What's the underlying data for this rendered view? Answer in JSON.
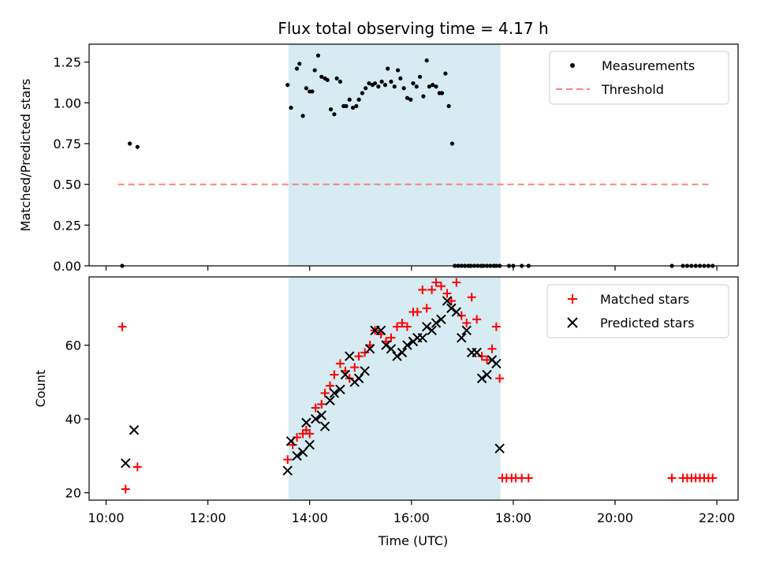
{
  "chart_data": [
    {
      "type": "scatter",
      "title": "Flux total observing time = 4.17 h",
      "ylabel": "Matched/Predicted stars",
      "xlabel": "",
      "ylim": [
        0,
        1.36
      ],
      "yticks": [
        "0.00",
        "0.25",
        "0.50",
        "0.75",
        "1.00",
        "1.25"
      ],
      "legend_position": "top-right",
      "shaded_span": {
        "start": "13:35",
        "end": "17:45",
        "color": "#add8e6"
      },
      "threshold": {
        "name": "Threshold",
        "value": 0.5,
        "start": "10:14",
        "end": "21:55",
        "color": "#ff8080"
      },
      "series": [
        {
          "name": "Measurements",
          "marker": "dot",
          "color": "#000000",
          "x": [
            "10:19",
            "10:28",
            "10:37",
            "13:34",
            "13:38",
            "13:45",
            "13:48",
            "13:52",
            "13:56",
            "14:00",
            "14:03",
            "14:06",
            "14:10",
            "14:14",
            "14:18",
            "14:21",
            "14:25",
            "14:29",
            "14:32",
            "14:36",
            "14:40",
            "14:43",
            "14:47",
            "14:51",
            "14:55",
            "14:58",
            "15:02",
            "15:06",
            "15:10",
            "15:14",
            "15:17",
            "15:21",
            "15:25",
            "15:29",
            "15:32",
            "15:36",
            "15:40",
            "15:44",
            "15:47",
            "15:51",
            "15:55",
            "15:59",
            "16:02",
            "16:06",
            "16:10",
            "16:14",
            "16:18",
            "16:21",
            "16:25",
            "16:29",
            "16:33",
            "16:36",
            "16:40",
            "16:44",
            "16:48",
            "16:51",
            "16:55",
            "16:59",
            "17:03",
            "17:07",
            "17:10",
            "17:14",
            "17:18",
            "17:22",
            "17:25",
            "17:29",
            "17:33",
            "17:37",
            "17:40",
            "17:44",
            "17:55",
            "18:00",
            "18:10",
            "18:18",
            "21:07",
            "21:20",
            "21:25",
            "21:30",
            "21:35",
            "21:40",
            "21:45",
            "21:50",
            "21:55"
          ],
          "y": [
            0.0,
            0.75,
            0.73,
            1.11,
            0.97,
            1.21,
            1.24,
            0.92,
            1.09,
            1.07,
            1.07,
            1.2,
            1.29,
            1.16,
            1.15,
            1.14,
            0.96,
            0.93,
            1.15,
            1.13,
            0.98,
            0.98,
            1.02,
            0.97,
            0.98,
            1.02,
            1.06,
            1.09,
            1.12,
            1.11,
            1.12,
            1.1,
            1.13,
            1.11,
            1.21,
            1.13,
            1.1,
            1.2,
            1.15,
            1.09,
            1.03,
            1.02,
            1.12,
            1.1,
            1.16,
            1.04,
            1.26,
            1.1,
            1.11,
            1.1,
            1.06,
            1.06,
            1.18,
            0.98,
            0.75,
            0.0,
            0.0,
            0.0,
            0.0,
            0.0,
            0.0,
            0.0,
            0.0,
            0.0,
            0.0,
            0.0,
            0.0,
            0.0,
            0.0,
            0.0,
            0.0,
            0.0,
            0.0,
            0.0,
            0.0,
            0.0,
            0.0,
            0.0,
            0.0,
            0.0,
            0.0,
            0.0,
            0.0
          ]
        }
      ]
    },
    {
      "type": "scatter",
      "title": "",
      "ylabel": "Count",
      "xlabel": "Time (UTC)",
      "ylim": [
        18,
        78.5
      ],
      "yticks": [
        "20",
        "40",
        "60"
      ],
      "xlim": [
        "09:40",
        "22:25"
      ],
      "xticks": [
        "10:00",
        "12:00",
        "14:00",
        "16:00",
        "18:00",
        "20:00",
        "22:00"
      ],
      "legend_position": "top-right",
      "shaded_span": {
        "start": "13:35",
        "end": "17:45",
        "color": "#add8e6"
      },
      "series": [
        {
          "name": "Matched stars",
          "marker": "plus",
          "color": "#ff0000",
          "x": [
            "10:19",
            "10:23",
            "10:37",
            "13:34",
            "13:40",
            "13:45",
            "13:52",
            "13:56",
            "14:00",
            "14:07",
            "14:14",
            "14:18",
            "14:24",
            "14:29",
            "14:36",
            "14:42",
            "14:47",
            "14:53",
            "14:58",
            "15:05",
            "15:11",
            "15:17",
            "15:24",
            "15:30",
            "15:36",
            "15:43",
            "15:49",
            "15:55",
            "16:02",
            "16:07",
            "16:13",
            "16:18",
            "16:24",
            "16:29",
            "16:35",
            "16:42",
            "16:47",
            "16:53",
            "16:59",
            "17:05",
            "17:11",
            "17:17",
            "17:23",
            "17:29",
            "17:35",
            "17:40",
            "17:44",
            "17:47",
            "17:52",
            "17:58",
            "18:03",
            "18:10",
            "18:18",
            "21:07",
            "21:20",
            "21:25",
            "21:30",
            "21:35",
            "21:40",
            "21:45",
            "21:50",
            "21:55"
          ],
          "y": [
            65,
            21,
            27,
            29,
            33,
            35,
            36,
            37,
            36,
            43,
            44,
            47,
            49,
            52,
            55,
            53,
            51,
            54,
            57,
            58,
            60,
            64,
            63,
            61,
            62,
            65,
            66,
            65,
            69,
            69,
            75,
            70,
            75,
            77,
            76,
            74,
            72,
            77,
            68,
            66,
            73,
            67,
            57,
            56,
            59,
            65,
            51,
            24,
            24,
            24,
            24,
            24,
            24,
            24,
            24,
            24,
            24,
            24,
            24,
            24,
            24,
            24
          ]
        },
        {
          "name": "Predicted stars",
          "marker": "x",
          "color": "#000000",
          "x": [
            "10:23",
            "10:33",
            "13:34",
            "13:38",
            "13:45",
            "13:52",
            "13:56",
            "14:00",
            "14:07",
            "14:14",
            "14:18",
            "14:24",
            "14:29",
            "14:36",
            "14:42",
            "14:47",
            "14:53",
            "14:58",
            "15:05",
            "15:11",
            "15:17",
            "15:24",
            "15:30",
            "15:36",
            "15:43",
            "15:49",
            "15:55",
            "16:02",
            "16:07",
            "16:13",
            "16:18",
            "16:24",
            "16:29",
            "16:35",
            "16:42",
            "16:47",
            "16:53",
            "16:59",
            "17:05",
            "17:11",
            "17:17",
            "17:23",
            "17:29",
            "17:35",
            "17:40",
            "17:44"
          ],
          "y": [
            28,
            37,
            26,
            34,
            30,
            31,
            39,
            33,
            40,
            41,
            38,
            45,
            47,
            48,
            52,
            57,
            50,
            51,
            53,
            59,
            64,
            64,
            60,
            59,
            57,
            58,
            60,
            61,
            62,
            62,
            65,
            64,
            66,
            67,
            72,
            70,
            69,
            62,
            64,
            58,
            58,
            51,
            52,
            56,
            55,
            32
          ]
        }
      ]
    }
  ]
}
